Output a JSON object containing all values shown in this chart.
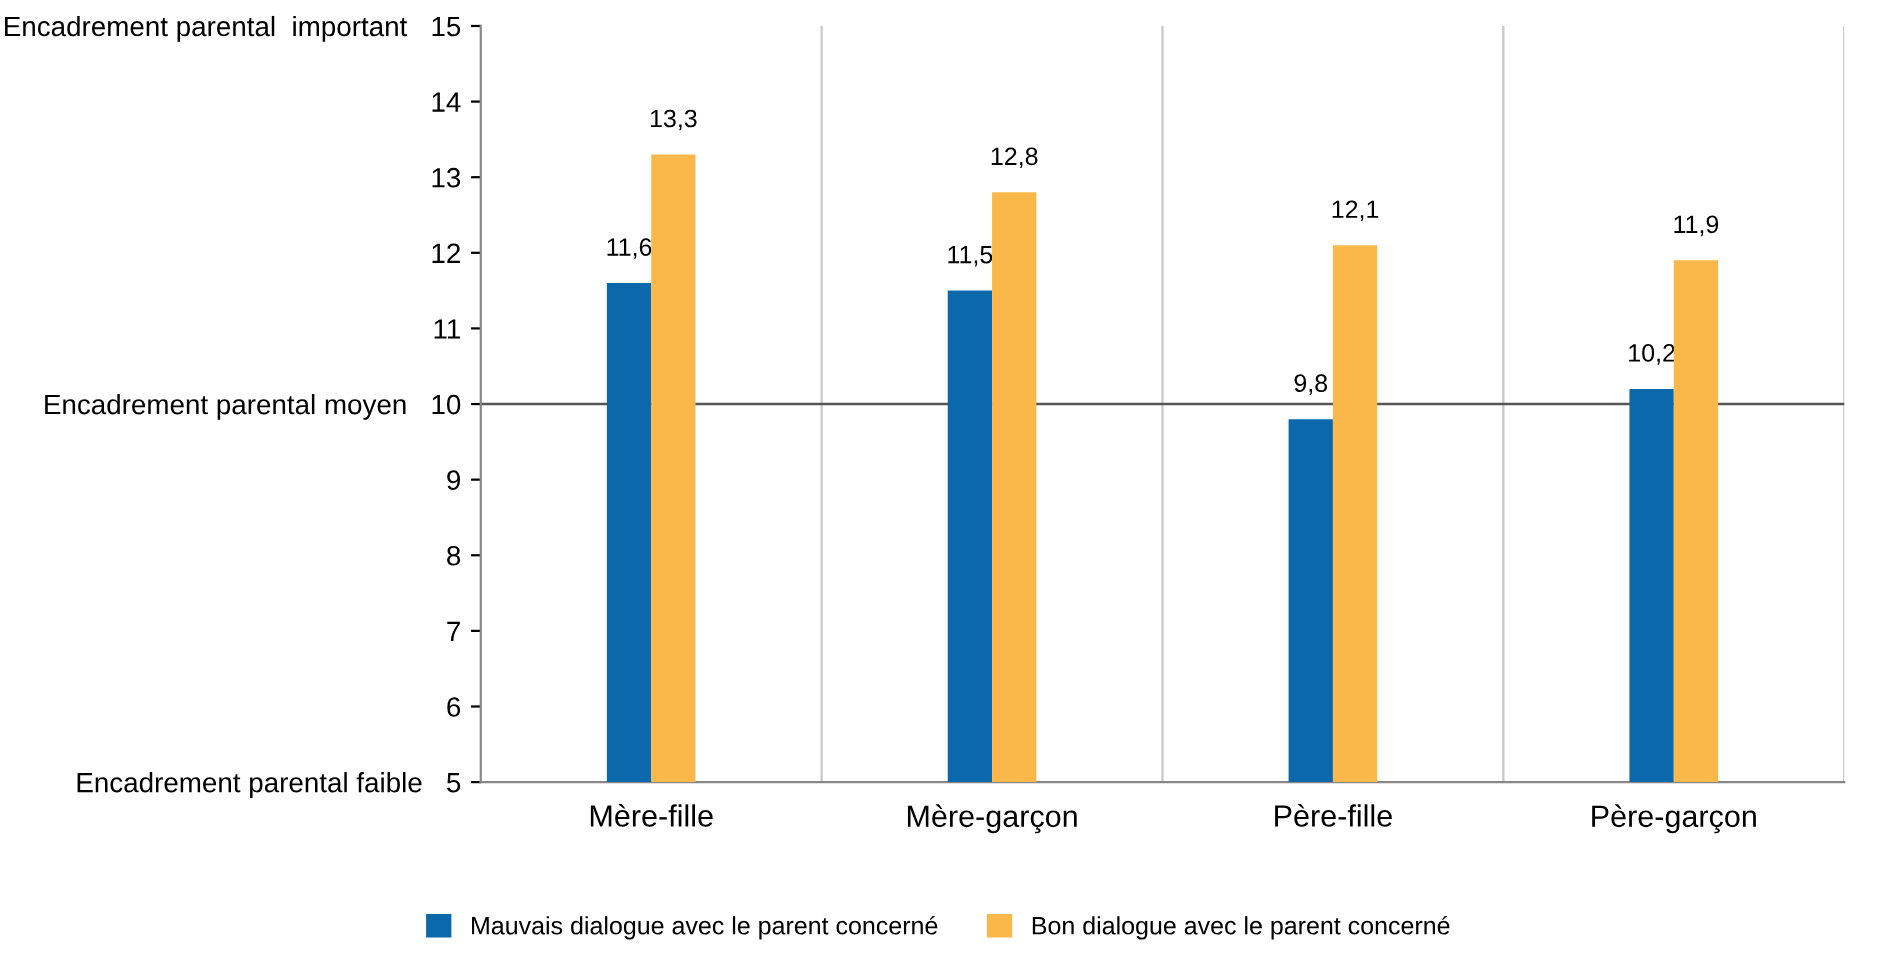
{
  "chart_data": {
    "type": "bar",
    "categories": [
      "Mère-fille",
      "Mère-garçon",
      "Père-fille",
      "Père-garçon"
    ],
    "series": [
      {
        "name": "Mauvais dialogue avec le parent concerné",
        "color": "#0a68ab",
        "values": [
          11.6,
          11.5,
          9.8,
          10.2
        ],
        "value_labels": [
          "11,6",
          "11,5",
          "9,8",
          "10,2"
        ]
      },
      {
        "name": "Bon dialogue avec le parent concerné",
        "color": "#fbb84a",
        "values": [
          13.3,
          12.8,
          12.1,
          11.9
        ],
        "value_labels": [
          "13,3",
          "12,8",
          "12,1",
          "11,9"
        ]
      }
    ],
    "ylim": [
      5,
      15
    ],
    "yticks": [
      {
        "value": 5,
        "label": "Encadrement parental faible   5"
      },
      6,
      7,
      8,
      9,
      {
        "value": 10,
        "label": "Encadrement parental moyen   10"
      },
      11,
      12,
      13,
      14,
      {
        "value": 15,
        "label": "Encadrement parental  important   15"
      }
    ],
    "ref_lines": [
      {
        "axis": "y",
        "value": 10,
        "color": "#555555"
      }
    ],
    "grid": "x",
    "legend": "bottom"
  }
}
